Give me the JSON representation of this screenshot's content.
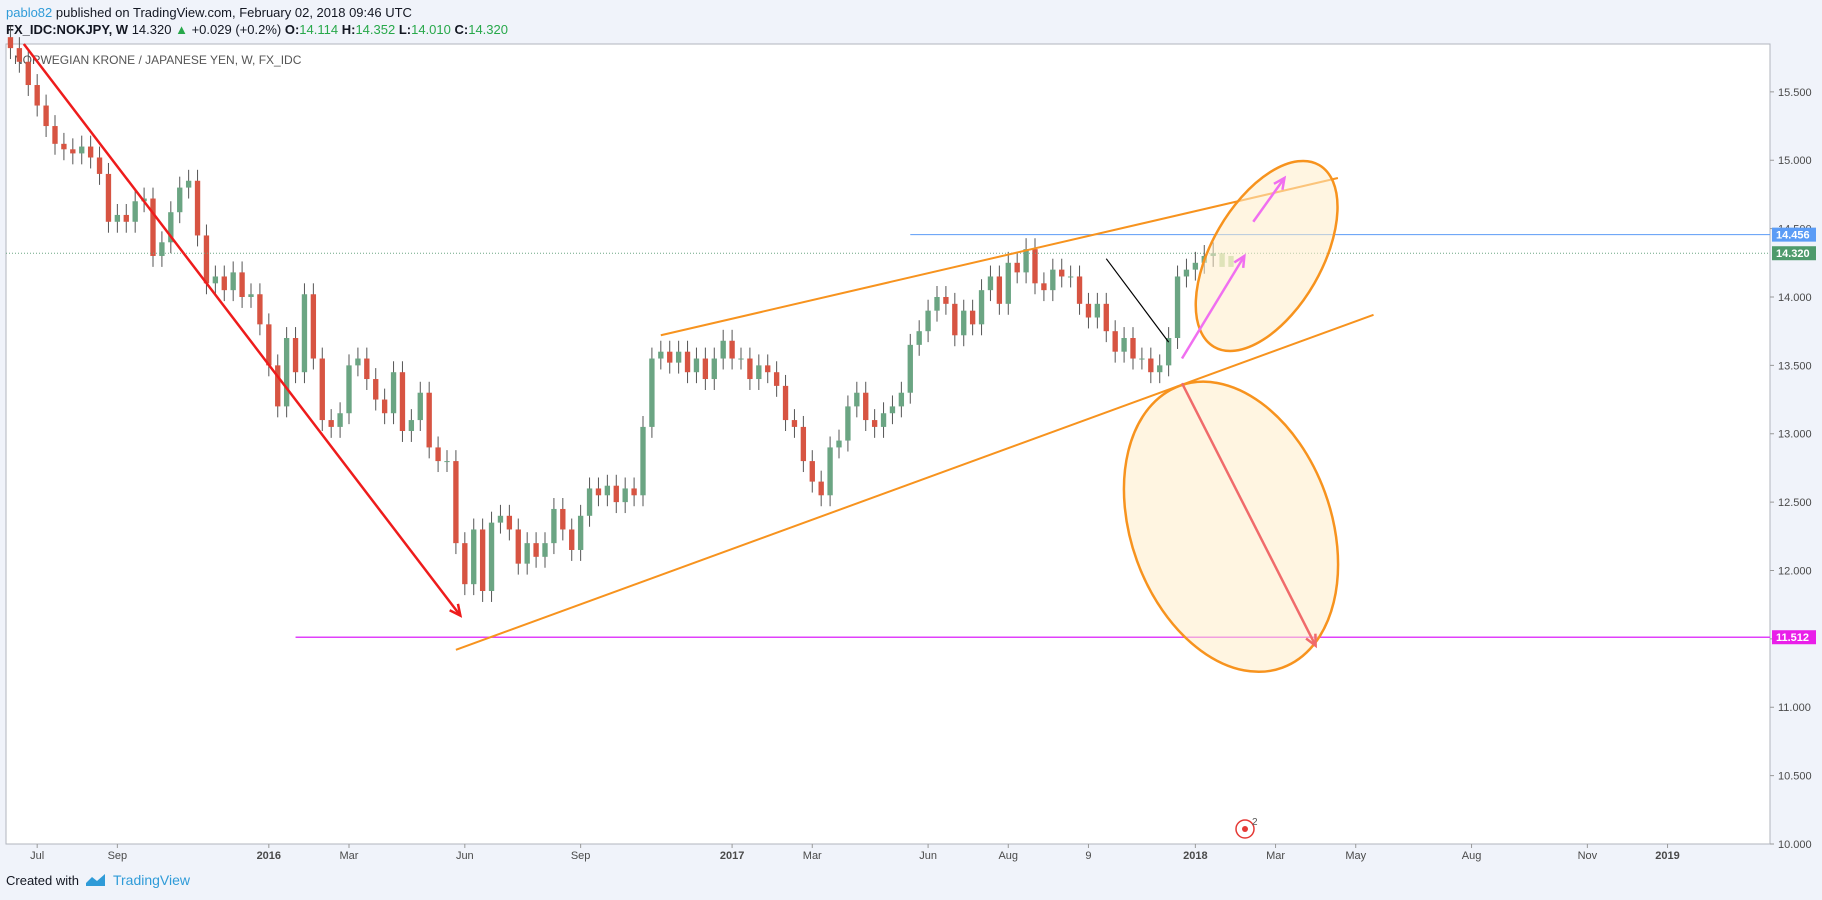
{
  "header": {
    "user": "pablo82",
    "published_text": "published on TradingView.com, February 02, 2018 09:46 UTC",
    "symbol": "FX_IDC:NOKJPY, W",
    "last_price": "14.320",
    "change_arrow": "▲",
    "change": "+0.029 (+0.2%)",
    "open_label": "O:",
    "open": "14.114",
    "high_label": "H:",
    "high": "14.352",
    "low_label": "L:",
    "low": "14.010",
    "close_label": "C:",
    "close": "14.320"
  },
  "chart_title": "NORWEGIAN KRONE / JAPANESE YEN, W, FX_IDC",
  "footer": {
    "created_with": "Created with",
    "brand": "TradingView"
  },
  "colors": {
    "up": "#6ba583",
    "down": "#d75442",
    "orange": "#f7931e",
    "magenta": "#e040fb",
    "blue_line": "#5b9cf6",
    "red_arrow": "#ee1c1c",
    "resistance_label_bg": "#5b9cf6",
    "price_label_bg": "#4e9a6c",
    "support_label_bg": "#e91ee9"
  },
  "chart_data": {
    "type": "candlestick",
    "title": "NORWEGIAN KRONE / JAPANESE YEN, W, FX_IDC",
    "ylim": [
      10.0,
      15.85
    ],
    "y_ticks": [
      "10.000",
      "10.500",
      "11.000",
      "11.500",
      "12.000",
      "12.500",
      "13.000",
      "13.500",
      "14.000",
      "14.500",
      "15.000",
      "15.500"
    ],
    "y_tick_values": [
      10.0,
      10.5,
      11.0,
      11.5,
      12.0,
      12.5,
      13.0,
      13.5,
      14.0,
      14.5,
      15.0,
      15.5
    ],
    "x_ticks": [
      {
        "label": "Jul",
        "week": 3,
        "bold": false
      },
      {
        "label": "Sep",
        "week": 12,
        "bold": false
      },
      {
        "label": "2016",
        "week": 29,
        "bold": true
      },
      {
        "label": "Mar",
        "week": 38,
        "bold": false
      },
      {
        "label": "Jun",
        "week": 51,
        "bold": false
      },
      {
        "label": "Sep",
        "week": 64,
        "bold": false
      },
      {
        "label": "2017",
        "week": 81,
        "bold": true
      },
      {
        "label": "Mar",
        "week": 90,
        "bold": false
      },
      {
        "label": "Jun",
        "week": 103,
        "bold": false
      },
      {
        "label": "Aug",
        "week": 112,
        "bold": false
      },
      {
        "label": "9",
        "week": 121,
        "bold": false
      },
      {
        "label": "2018",
        "week": 133,
        "bold": true
      },
      {
        "label": "Mar",
        "week": 142,
        "bold": false
      },
      {
        "label": "May",
        "week": 151,
        "bold": false
      },
      {
        "label": "Aug",
        "week": 164,
        "bold": false
      },
      {
        "label": "Nov",
        "week": 177,
        "bold": false
      },
      {
        "label": "2019",
        "week": 186,
        "bold": true
      }
    ],
    "x_range_weeks": [
      -0.5,
      197.5
    ],
    "price_labels": [
      {
        "value": 14.456,
        "text": "14.456",
        "kind": "resistance"
      },
      {
        "value": 14.32,
        "text": "14.320",
        "kind": "price"
      },
      {
        "value": 11.512,
        "text": "11.512",
        "kind": "support"
      }
    ],
    "closes": [
      15.82,
      15.72,
      15.55,
      15.4,
      15.25,
      15.12,
      15.08,
      15.05,
      15.1,
      15.02,
      14.9,
      14.55,
      14.6,
      14.55,
      14.7,
      14.72,
      14.3,
      14.4,
      14.62,
      14.8,
      14.85,
      14.45,
      14.1,
      14.15,
      14.05,
      14.18,
      14.0,
      14.02,
      13.8,
      13.5,
      13.2,
      13.7,
      13.45,
      14.02,
      13.55,
      13.1,
      13.05,
      13.15,
      13.5,
      13.55,
      13.4,
      13.25,
      13.15,
      13.45,
      13.02,
      13.1,
      13.3,
      12.9,
      12.8,
      12.8,
      12.2,
      11.9,
      12.3,
      11.85,
      12.35,
      12.4,
      12.3,
      12.05,
      12.2,
      12.1,
      12.2,
      12.45,
      12.3,
      12.15,
      12.4,
      12.6,
      12.55,
      12.62,
      12.5,
      12.6,
      12.55,
      13.05,
      13.55,
      13.6,
      13.52,
      13.6,
      13.45,
      13.55,
      13.4,
      13.55,
      13.68,
      13.55,
      13.55,
      13.4,
      13.5,
      13.45,
      13.35,
      13.1,
      13.05,
      12.8,
      12.65,
      12.55,
      12.9,
      12.95,
      13.2,
      13.3,
      13.1,
      13.05,
      13.15,
      13.2,
      13.3,
      13.65,
      13.75,
      13.9,
      14.0,
      13.95,
      13.72,
      13.9,
      13.8,
      14.05,
      14.15,
      13.95,
      14.25,
      14.18,
      14.35,
      14.1,
      14.05,
      14.2,
      14.15,
      14.15,
      13.95,
      13.85,
      13.95,
      13.75,
      13.6,
      13.7,
      13.55,
      13.55,
      13.45,
      13.5,
      13.7,
      14.15,
      14.2,
      14.25,
      14.3,
      14.32
    ],
    "future_dashed_candles": [
      14.22,
      14.3
    ]
  },
  "annotations": {
    "notification_badge": "2"
  }
}
